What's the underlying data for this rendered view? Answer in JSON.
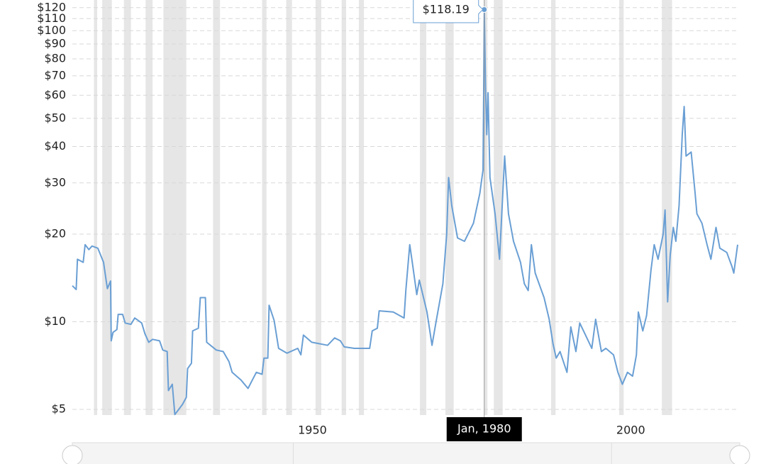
{
  "chart_data": {
    "type": "line",
    "x": [
      1915.3,
      1915.9,
      1916.1,
      1917.0,
      1917.3,
      1917.9,
      1918.4,
      1919.3,
      1920.2,
      1920.6,
      1920.8,
      1921.3,
      1921.4,
      1921.7,
      1922.3,
      1922.5,
      1923.2,
      1923.6,
      1924.5,
      1925.1,
      1926.2,
      1926.7,
      1927.3,
      1927.9,
      1929.0,
      1929.5,
      1930.2,
      1930.4,
      1931.0,
      1931.4,
      1932.6,
      1933.2,
      1933.4,
      1934.0,
      1934.2,
      1935.1,
      1935.4,
      1936.2,
      1936.4,
      1937.9,
      1939.0,
      1939.9,
      1940.4,
      1941.8,
      1942.9,
      1943.4,
      1944.2,
      1945.1,
      1945.4,
      1946.0,
      1946.2,
      1947.0,
      1947.7,
      1949.0,
      1950.7,
      1951.2,
      1951.6,
      1952.9,
      1955.4,
      1956.5,
      1957.4,
      1958.0,
      1959.6,
      1962.0,
      1962.4,
      1963.2,
      1963.5,
      1965.7,
      1967.4,
      1967.7,
      1968.3,
      1968.7,
      1969.4,
      1969.8,
      1971.0,
      1971.8,
      1972.4,
      1973.5,
      1974.1,
      1974.4,
      1974.9,
      1975.8,
      1976.9,
      1978.3,
      1979.3,
      1979.8,
      1979.9,
      1980.0,
      1980.2,
      1980.4,
      1980.6,
      1980.9,
      1981.7,
      1982.4,
      1983.2,
      1983.8,
      1984.6,
      1985.7,
      1986.3,
      1986.9,
      1987.4,
      1988.0,
      1989.4,
      1990.2,
      1990.8,
      1991.3,
      1991.9,
      1993.0,
      1993.6,
      1994.4,
      1995.0,
      1995.8,
      1996.9,
      1997.5,
      1998.4,
      1999.1,
      2000.3,
      2001.0,
      2001.7,
      2002.5,
      2003.3,
      2003.9,
      2004.2,
      2004.9,
      2005.5,
      2006.2,
      2006.7,
      2007.3,
      2008.1,
      2008.4,
      2008.8,
      2009.2,
      2009.7,
      2010.1,
      2010.6,
      2011.1,
      2011.4,
      2011.7,
      2012.5,
      2013.1,
      2013.4,
      2014.2,
      2015.0,
      2015.6,
      2016.4,
      2017.0,
      2018.1,
      2018.9,
      2019.2,
      2019.8
    ],
    "series": [
      {
        "color": "#6a9fd4",
        "values": [
          13.3,
          12.9,
          16.4,
          16.0,
          18.4,
          17.7,
          18.2,
          17.9,
          16.0,
          13.9,
          13.0,
          13.8,
          8.6,
          9.2,
          9.4,
          10.6,
          10.6,
          9.9,
          9.8,
          10.3,
          9.9,
          9.1,
          8.5,
          8.7,
          8.6,
          8.0,
          7.9,
          5.8,
          6.1,
          4.8,
          5.2,
          5.5,
          6.9,
          7.2,
          9.3,
          9.5,
          12.1,
          12.1,
          8.5,
          8.0,
          7.9,
          7.3,
          6.7,
          6.3,
          5.9,
          6.2,
          6.7,
          6.6,
          7.5,
          7.5,
          11.4,
          10.1,
          8.1,
          7.8,
          8.1,
          7.7,
          9.0,
          8.5,
          8.3,
          8.8,
          8.6,
          8.2,
          8.1,
          8.1,
          9.3,
          9.5,
          10.9,
          10.8,
          10.3,
          12.9,
          18.4,
          16.0,
          12.4,
          13.9,
          10.8,
          8.3,
          9.9,
          13.5,
          20.0,
          31.3,
          25.0,
          19.4,
          18.9,
          21.8,
          27.6,
          33.2,
          58.9,
          118.19,
          64.5,
          43.9,
          61.2,
          31.3,
          23.5,
          16.4,
          37.1,
          23.5,
          18.9,
          16.0,
          13.5,
          12.8,
          18.4,
          14.7,
          12.1,
          10.2,
          8.4,
          7.5,
          7.9,
          6.7,
          9.6,
          7.9,
          9.9,
          9.1,
          8.1,
          10.2,
          7.9,
          8.1,
          7.7,
          6.7,
          6.1,
          6.7,
          6.5,
          7.7,
          10.8,
          9.3,
          10.5,
          15.1,
          18.4,
          16.4,
          20.0,
          24.2,
          11.7,
          16.9,
          21.1,
          18.9,
          25.0,
          43.9,
          54.9,
          37.1,
          38.3,
          27.9,
          23.5,
          21.8,
          18.4,
          16.4,
          21.1,
          17.9,
          17.3,
          15.5,
          14.7,
          18.4
        ]
      }
    ],
    "recessions": [
      [
        1918.7,
        1919.2
      ],
      [
        1920.0,
        1921.5
      ],
      [
        1923.4,
        1924.5
      ],
      [
        1926.8,
        1927.9
      ],
      [
        1929.6,
        1933.2
      ],
      [
        1937.4,
        1938.5
      ],
      [
        1945.1,
        1945.8
      ],
      [
        1948.9,
        1949.8
      ],
      [
        1953.5,
        1954.4
      ],
      [
        1957.6,
        1958.3
      ],
      [
        1960.3,
        1961.1
      ],
      [
        1969.9,
        1970.9
      ],
      [
        1973.9,
        1975.2
      ],
      [
        1980.0,
        1980.5
      ],
      [
        1981.5,
        1982.9
      ],
      [
        1990.5,
        1991.2
      ],
      [
        2001.2,
        2001.9
      ],
      [
        2007.9,
        2009.5
      ]
    ],
    "xlim": [
      1915.3,
      2019.8
    ],
    "xticks": [
      1950,
      2000
    ],
    "ylim": [
      4.78,
      127.5
    ],
    "log_scale": true,
    "yticks": [
      {
        "value": 5,
        "label": "$5"
      },
      {
        "value": 10,
        "label": "$10"
      },
      {
        "value": 20,
        "label": "$20"
      },
      {
        "value": 30,
        "label": "$30"
      },
      {
        "value": 40,
        "label": "$40"
      },
      {
        "value": 50,
        "label": "$50"
      },
      {
        "value": 60,
        "label": "$60"
      },
      {
        "value": 70,
        "label": "$70"
      },
      {
        "value": 80,
        "label": "$80"
      },
      {
        "value": 90,
        "label": "$90"
      },
      {
        "value": 100,
        "label": "$100"
      },
      {
        "value": 110,
        "label": "$110"
      },
      {
        "value": 120,
        "label": "$120"
      }
    ],
    "grid": true,
    "tooltip": {
      "price_label": "$118.19",
      "date_label": "Jan, 1980"
    }
  }
}
